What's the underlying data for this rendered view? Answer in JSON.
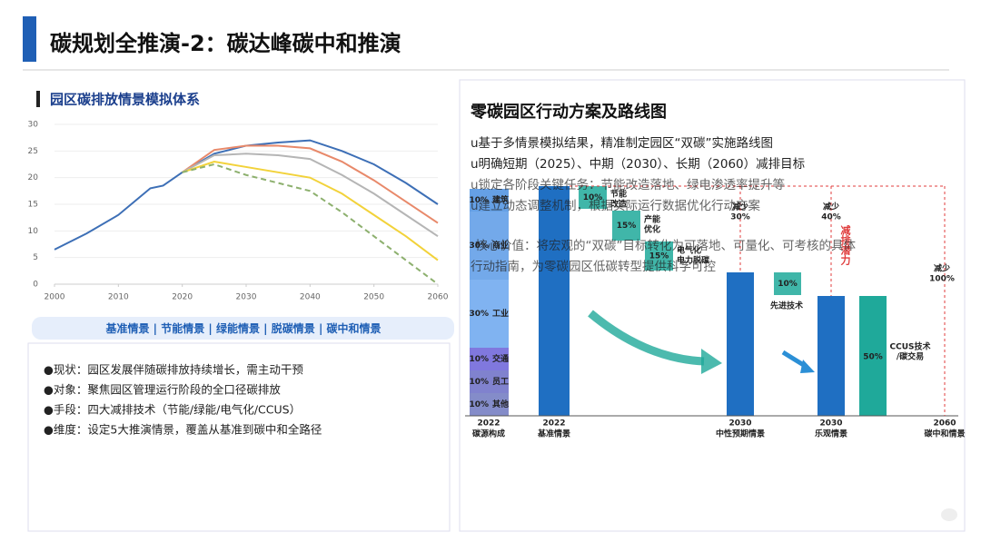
{
  "header": {
    "title": "碳规划全推演-2：碳达峰碳中和推演"
  },
  "left": {
    "heading": "园区碳排放情景模拟体系",
    "notes": [
      "●现状：园区发展伴随碳排放持续增长，需主动干预",
      "●对象：聚焦园区管理运行阶段的全口径碳排放",
      "●手段：四大减排技术（节能/绿能/电气化/CCUS）",
      "●维度：设定5大推演情景，覆盖从基准到碳中和全路径"
    ]
  },
  "chart_data": {
    "type": "line",
    "x": [
      2000,
      2005,
      2010,
      2013,
      2015,
      2017,
      2020,
      2025,
      2030,
      2035,
      2040,
      2045,
      2050,
      2055,
      2060
    ],
    "series": [
      {
        "name": "基准情景",
        "color": "#3d6fb6",
        "dashed": false,
        "values": [
          6.5,
          9.5,
          13,
          16,
          18,
          18.5,
          21,
          24.5,
          26,
          26.6,
          27,
          25,
          22.5,
          19,
          15
        ]
      },
      {
        "name": "节能情景",
        "color": "#e8896a",
        "dashed": false,
        "values": [
          null,
          null,
          null,
          null,
          null,
          null,
          21,
          25.2,
          26,
          26,
          25.5,
          23,
          19.5,
          15.5,
          11.5
        ]
      },
      {
        "name": "绿能情景",
        "color": "#b5b5b5",
        "dashed": false,
        "values": [
          null,
          null,
          null,
          null,
          null,
          null,
          21,
          24.2,
          24.5,
          24.2,
          23.5,
          20.5,
          17,
          13,
          9
        ]
      },
      {
        "name": "脱碳情景",
        "color": "#f2d23a",
        "dashed": false,
        "values": [
          null,
          null,
          null,
          null,
          null,
          null,
          21,
          23,
          22,
          21,
          20,
          17,
          13,
          9,
          4.5
        ]
      },
      {
        "name": "碳中和情景",
        "color": "#8db06e",
        "dashed": true,
        "values": [
          null,
          null,
          null,
          null,
          null,
          null,
          21,
          22.5,
          20.5,
          19,
          17.5,
          13.5,
          9,
          4.5,
          0
        ]
      }
    ],
    "xlim": [
      2000,
      2060
    ],
    "ylim": [
      0,
      30
    ],
    "xticks": [
      2000,
      2010,
      2020,
      2030,
      2040,
      2050,
      2060
    ],
    "yticks": [
      0,
      5,
      10,
      15,
      20,
      25,
      30
    ],
    "grid": true
  },
  "roadmap": {
    "title": "零碳园区行动方案及路线图",
    "points": [
      "u基于多情景模拟结果，精准制定园区“双碳”实施路线图",
      "u明确短期（2025）、中期（2030）、长期（2060）减排目标",
      "u锁定各阶段关键任务：节能改造落地、绿电渗透率提升等",
      "u建立动态调整机制，根据实际运行数据优化行动方案"
    ],
    "value_lines": [
      "核心价值：将宏观的“双碳”目标转化为可落地、可量化、可考核的具体",
      "行动指南，为零碳园区低碳转型提供科学可控"
    ],
    "composition": [
      {
        "value": "10%",
        "label": "建筑"
      },
      {
        "value": "30%",
        "label": "商业"
      },
      {
        "value": "30%",
        "label": "工业"
      },
      {
        "value": "10%",
        "label": "交通"
      },
      {
        "value": "10%",
        "label": "员工"
      },
      {
        "value": "10%",
        "label": "其他"
      }
    ],
    "steps": [
      {
        "value": "10%",
        "label": [
          "节能",
          "改造"
        ]
      },
      {
        "value": "15%",
        "label": [
          "产能",
          "优化"
        ]
      },
      {
        "value": "15%",
        "label": [
          "电气化",
          "电力脱碳"
        ]
      },
      {
        "value": "10%",
        "label": [
          "先进技术"
        ]
      },
      {
        "value": "50%",
        "label": [
          "CCUS技术",
          "/碳交易"
        ]
      }
    ],
    "bars": [
      {
        "year": "2022",
        "label": "碳源构成"
      },
      {
        "year": "2022",
        "label": "基准情景"
      },
      {
        "year": "2030",
        "label": "中性预期情景"
      },
      {
        "year": "2030",
        "label": "乐观情景"
      },
      {
        "year": "2060",
        "label": "碳中和情景"
      }
    ],
    "reductions": [
      [
        "减少",
        "30%"
      ],
      [
        "减少",
        "40%"
      ],
      [
        "减少",
        "100%"
      ]
    ],
    "potential": "减排潜力"
  }
}
